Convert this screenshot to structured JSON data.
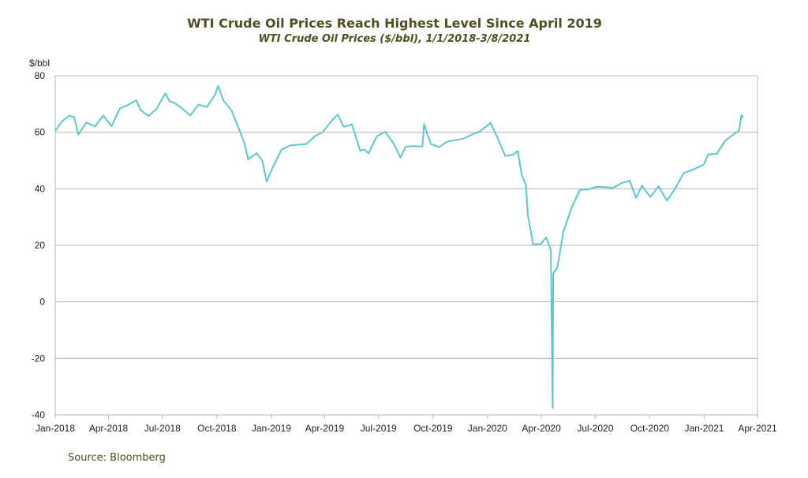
{
  "title": "WTI Crude Oil Prices Reach Highest Level Since April 2019",
  "subtitle": "WTI Crude Oil Prices ($/bbl), 1/1/2018-3/8/2021",
  "source": "Source: Bloomberg",
  "colors": {
    "line": "#5cc8cc",
    "grid": "#b5b5b5",
    "text": "#4f4f1f"
  },
  "chart_data": {
    "type": "line",
    "title": "WTI Crude Oil Prices Reach Highest Level Since April 2019",
    "subtitle": "WTI Crude Oil Prices ($/bbl), 1/1/2018-3/8/2021",
    "ylabel": "$/bbl",
    "xlabel": "",
    "ylim": [
      -40,
      80
    ],
    "yticks": [
      80,
      60,
      40,
      20,
      0,
      -20,
      -40
    ],
    "xlim": [
      "2018-01-01",
      "2021-04-01"
    ],
    "xticks": [
      "Jan-2018",
      "Apr-2018",
      "Jul-2018",
      "Oct-2018",
      "Jan-2019",
      "Apr-2019",
      "Jul-2019",
      "Oct-2019",
      "Jan-2020",
      "Apr-2020",
      "Jul-2020",
      "Oct-2020",
      "Jan-2021",
      "Apr-2021"
    ],
    "grid": "horizontal",
    "legend": "none",
    "series": [
      {
        "points": [
          [
            "2018-01-01",
            60.4
          ],
          [
            "2018-01-12",
            63.8
          ],
          [
            "2018-01-25",
            65.9
          ],
          [
            "2018-02-02",
            65.3
          ],
          [
            "2018-02-09",
            59.2
          ],
          [
            "2018-02-23",
            63.5
          ],
          [
            "2018-03-09",
            62.0
          ],
          [
            "2018-03-23",
            65.9
          ],
          [
            "2018-04-06",
            62.1
          ],
          [
            "2018-04-20",
            68.4
          ],
          [
            "2018-05-04",
            69.7
          ],
          [
            "2018-05-18",
            71.3
          ],
          [
            "2018-05-25",
            67.9
          ],
          [
            "2018-06-08",
            65.7
          ],
          [
            "2018-06-22",
            68.6
          ],
          [
            "2018-07-06",
            73.8
          ],
          [
            "2018-07-13",
            71.0
          ],
          [
            "2018-07-20",
            70.5
          ],
          [
            "2018-08-03",
            68.5
          ],
          [
            "2018-08-17",
            65.9
          ],
          [
            "2018-08-31",
            69.8
          ],
          [
            "2018-09-14",
            68.9
          ],
          [
            "2018-09-28",
            73.3
          ],
          [
            "2018-10-03",
            76.4
          ],
          [
            "2018-10-12",
            71.3
          ],
          [
            "2018-10-26",
            67.6
          ],
          [
            "2018-11-09",
            60.2
          ],
          [
            "2018-11-16",
            56.5
          ],
          [
            "2018-11-23",
            50.4
          ],
          [
            "2018-12-07",
            52.6
          ],
          [
            "2018-12-17",
            49.9
          ],
          [
            "2018-12-24",
            42.5
          ],
          [
            "2019-01-04",
            47.9
          ],
          [
            "2019-01-18",
            53.8
          ],
          [
            "2019-02-01",
            55.3
          ],
          [
            "2019-02-15",
            55.6
          ],
          [
            "2019-03-01",
            55.8
          ],
          [
            "2019-03-15",
            58.5
          ],
          [
            "2019-03-29",
            60.1
          ],
          [
            "2019-04-12",
            63.9
          ],
          [
            "2019-04-23",
            66.3
          ],
          [
            "2019-05-03",
            61.9
          ],
          [
            "2019-05-17",
            62.8
          ],
          [
            "2019-05-31",
            53.5
          ],
          [
            "2019-06-07",
            53.9
          ],
          [
            "2019-06-14",
            52.5
          ],
          [
            "2019-06-28",
            58.5
          ],
          [
            "2019-07-12",
            60.2
          ],
          [
            "2019-07-26",
            56.2
          ],
          [
            "2019-08-07",
            51.1
          ],
          [
            "2019-08-16",
            54.9
          ],
          [
            "2019-08-30",
            55.1
          ],
          [
            "2019-09-13",
            54.9
          ],
          [
            "2019-09-16",
            62.9
          ],
          [
            "2019-09-27",
            55.9
          ],
          [
            "2019-10-11",
            54.7
          ],
          [
            "2019-10-25",
            56.7
          ],
          [
            "2019-11-08",
            57.2
          ],
          [
            "2019-11-22",
            57.8
          ],
          [
            "2019-12-06",
            59.2
          ],
          [
            "2019-12-20",
            60.4
          ],
          [
            "2020-01-06",
            63.3
          ],
          [
            "2020-01-17",
            58.5
          ],
          [
            "2020-01-31",
            51.6
          ],
          [
            "2020-02-14",
            52.1
          ],
          [
            "2020-02-21",
            53.4
          ],
          [
            "2020-02-28",
            44.8
          ],
          [
            "2020-03-06",
            41.3
          ],
          [
            "2020-03-09",
            31.1
          ],
          [
            "2020-03-18",
            20.4
          ],
          [
            "2020-03-31",
            20.5
          ],
          [
            "2020-04-09",
            22.8
          ],
          [
            "2020-04-17",
            18.3
          ],
          [
            "2020-04-20",
            -37.6
          ],
          [
            "2020-04-21",
            10.0
          ],
          [
            "2020-04-28",
            12.3
          ],
          [
            "2020-05-08",
            24.7
          ],
          [
            "2020-05-22",
            33.3
          ],
          [
            "2020-06-05",
            39.6
          ],
          [
            "2020-06-19",
            39.8
          ],
          [
            "2020-07-03",
            40.7
          ],
          [
            "2020-07-17",
            40.6
          ],
          [
            "2020-07-31",
            40.3
          ],
          [
            "2020-08-14",
            42.0
          ],
          [
            "2020-08-28",
            42.9
          ],
          [
            "2020-09-08",
            36.8
          ],
          [
            "2020-09-18",
            41.1
          ],
          [
            "2020-10-02",
            37.1
          ],
          [
            "2020-10-16",
            40.9
          ],
          [
            "2020-10-30",
            35.8
          ],
          [
            "2020-11-13",
            40.1
          ],
          [
            "2020-11-27",
            45.5
          ],
          [
            "2020-12-11",
            46.6
          ],
          [
            "2020-12-31",
            48.5
          ],
          [
            "2021-01-08",
            52.2
          ],
          [
            "2021-01-22",
            52.3
          ],
          [
            "2021-02-05",
            56.9
          ],
          [
            "2021-02-19",
            59.2
          ],
          [
            "2021-03-01",
            60.6
          ],
          [
            "2021-03-05",
            66.1
          ],
          [
            "2021-03-08",
            65.1
          ]
        ]
      }
    ]
  }
}
